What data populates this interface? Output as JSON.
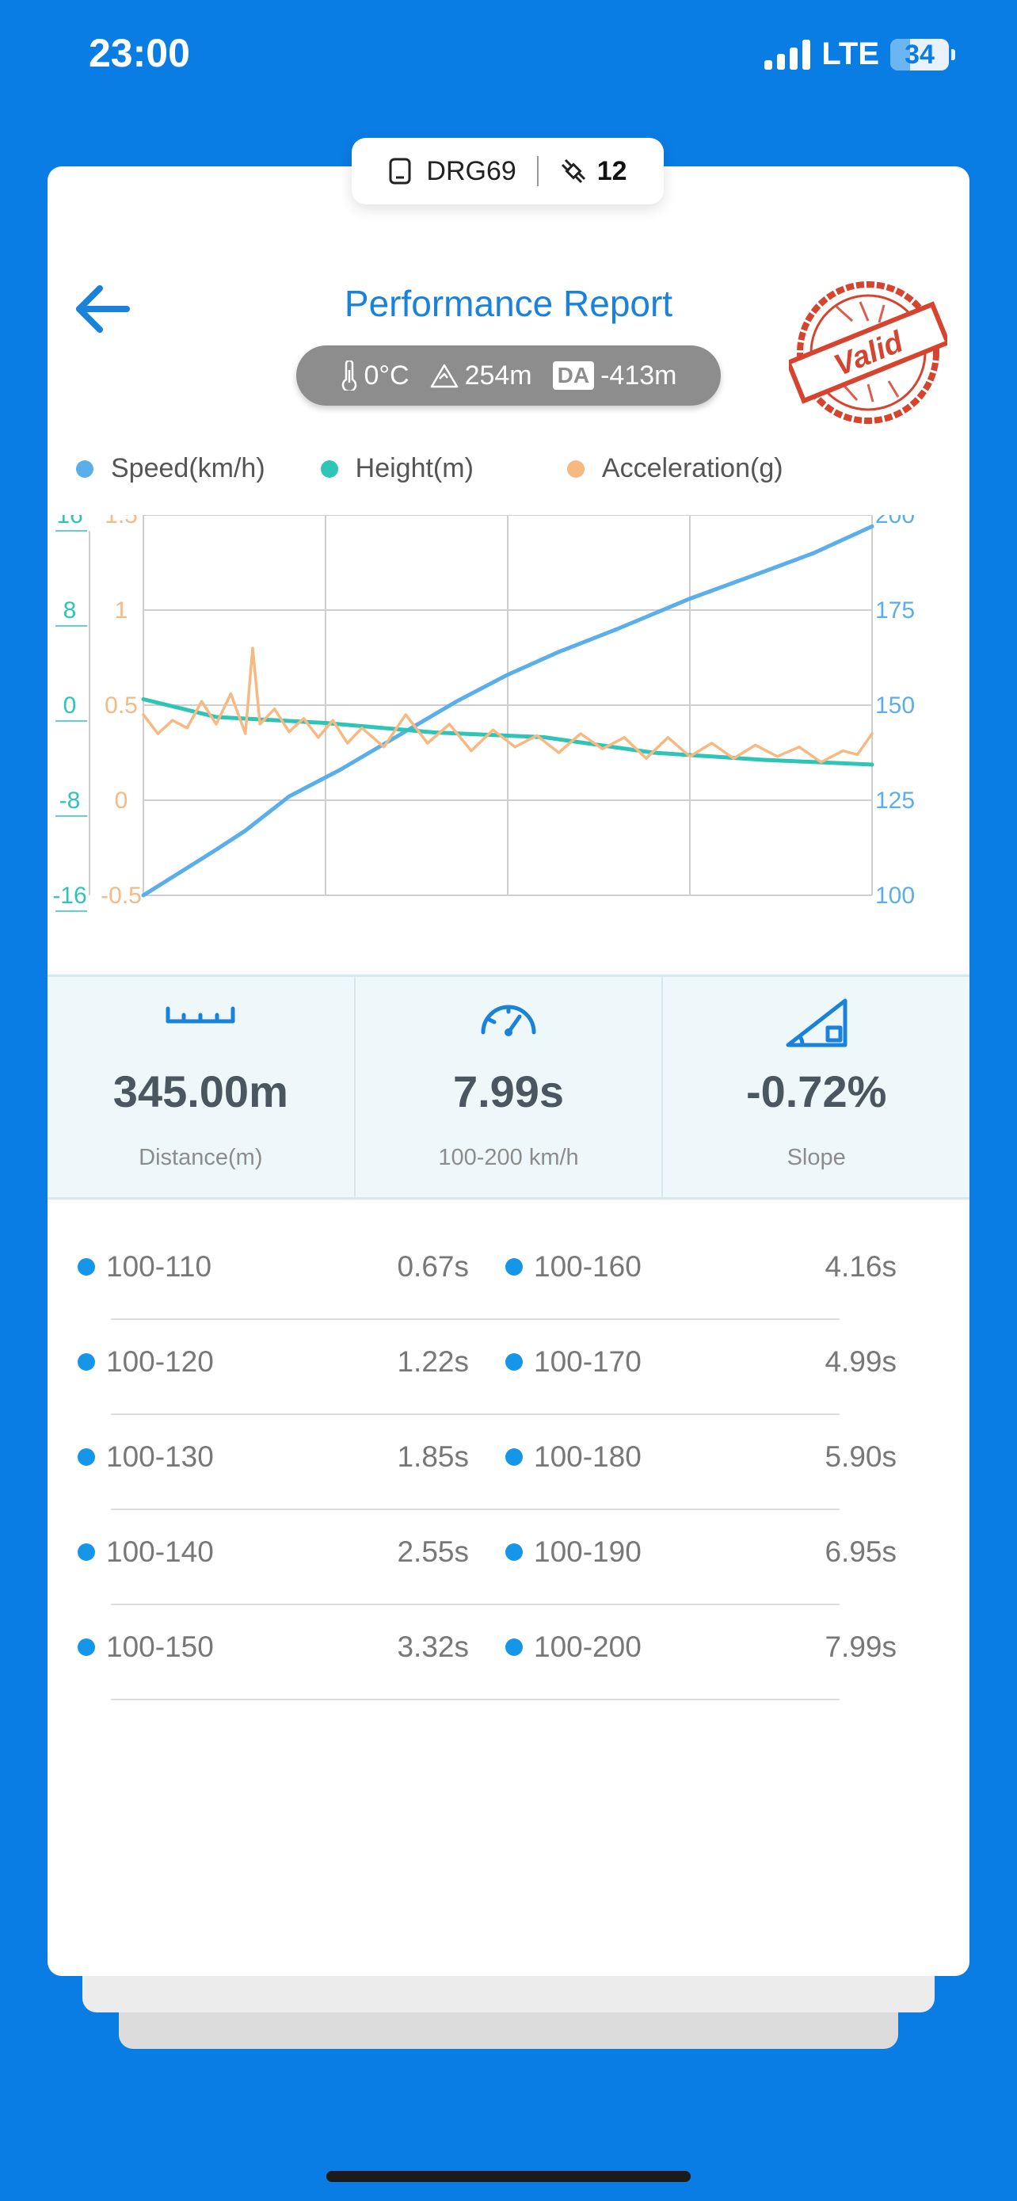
{
  "status_bar": {
    "time": "23:00",
    "network": "LTE",
    "battery": "34"
  },
  "device": {
    "name": "DRG69",
    "satellites": "12"
  },
  "header": {
    "title": "Performance Report",
    "stamp_text": "Valid"
  },
  "environment": {
    "temperature": "0°C",
    "altitude": "254m",
    "da_label": "DA",
    "density_altitude": "-413m"
  },
  "legend": [
    {
      "label": "Speed(km/h)",
      "color": "#5AAFEA"
    },
    {
      "label": "Height(m)",
      "color": "#2EC4B6"
    },
    {
      "label": "Acceleration(g)",
      "color": "#F7B982"
    }
  ],
  "chart_data": {
    "type": "line",
    "x_range": [
      0,
      100
    ],
    "axes": {
      "left_height": {
        "ticks": [
          "16",
          "8",
          "0",
          "-8",
          "-16"
        ],
        "range": [
          -16,
          16
        ],
        "color": "#2EC4B6"
      },
      "left_accel": {
        "ticks": [
          "1.5",
          "1",
          "0.5",
          "0",
          "-0.5"
        ],
        "range": [
          -0.5,
          1.5
        ],
        "color": "#F7B982"
      },
      "right_speed": {
        "ticks": [
          "200",
          "175",
          "150",
          "125",
          "100"
        ],
        "range": [
          100,
          200
        ],
        "color": "#5AAFEA"
      }
    },
    "series": [
      {
        "name": "Speed(km/h)",
        "axis": "right_speed",
        "color": "#5AAFEA",
        "x": [
          0,
          5,
          10,
          14,
          20,
          27,
          35,
          43,
          50,
          57,
          65,
          75,
          85,
          92,
          100
        ],
        "y": [
          100,
          106,
          112,
          117,
          126,
          133,
          142,
          151,
          158,
          164,
          170,
          178,
          185,
          190,
          197
        ]
      },
      {
        "name": "Height(m)",
        "axis": "left_height",
        "color": "#2EC4B6",
        "x": [
          0,
          10,
          25,
          40,
          55,
          70,
          85,
          100
        ],
        "y": [
          0.5,
          -1.0,
          -1.5,
          -2.3,
          -2.7,
          -4.0,
          -4.6,
          -5.0
        ]
      },
      {
        "name": "Acceleration(g)",
        "axis": "left_accel",
        "color": "#F7B982",
        "x": [
          0,
          2,
          4,
          6,
          8,
          10,
          12,
          14,
          15,
          16,
          18,
          20,
          22,
          24,
          26,
          28,
          30,
          33,
          36,
          39,
          42,
          45,
          48,
          51,
          54,
          57,
          60,
          63,
          66,
          69,
          72,
          75,
          78,
          81,
          84,
          87,
          90,
          93,
          96,
          98,
          100
        ],
        "y": [
          0.45,
          0.35,
          0.42,
          0.38,
          0.52,
          0.4,
          0.56,
          0.35,
          0.8,
          0.4,
          0.48,
          0.36,
          0.43,
          0.33,
          0.42,
          0.3,
          0.38,
          0.28,
          0.45,
          0.3,
          0.4,
          0.26,
          0.37,
          0.28,
          0.34,
          0.25,
          0.35,
          0.27,
          0.33,
          0.22,
          0.33,
          0.23,
          0.3,
          0.22,
          0.29,
          0.23,
          0.28,
          0.2,
          0.26,
          0.24,
          0.35
        ]
      }
    ]
  },
  "stats": [
    {
      "value": "345.00m",
      "label": "Distance(m)",
      "icon": "ruler-icon"
    },
    {
      "value": "7.99s",
      "label": "100-200 km/h",
      "icon": "speedometer-icon"
    },
    {
      "value": "-0.72%",
      "label": "Slope",
      "icon": "slope-icon"
    }
  ],
  "splits": [
    {
      "left_range": "100-110",
      "left_time": "0.67s",
      "right_range": "100-160",
      "right_time": "4.16s"
    },
    {
      "left_range": "100-120",
      "left_time": "1.22s",
      "right_range": "100-170",
      "right_time": "4.99s"
    },
    {
      "left_range": "100-130",
      "left_time": "1.85s",
      "right_range": "100-180",
      "right_time": "5.90s"
    },
    {
      "left_range": "100-140",
      "left_time": "2.55s",
      "right_range": "100-190",
      "right_time": "6.95s"
    },
    {
      "left_range": "100-150",
      "left_time": "3.32s",
      "right_range": "100-200",
      "right_time": "7.99s"
    }
  ]
}
